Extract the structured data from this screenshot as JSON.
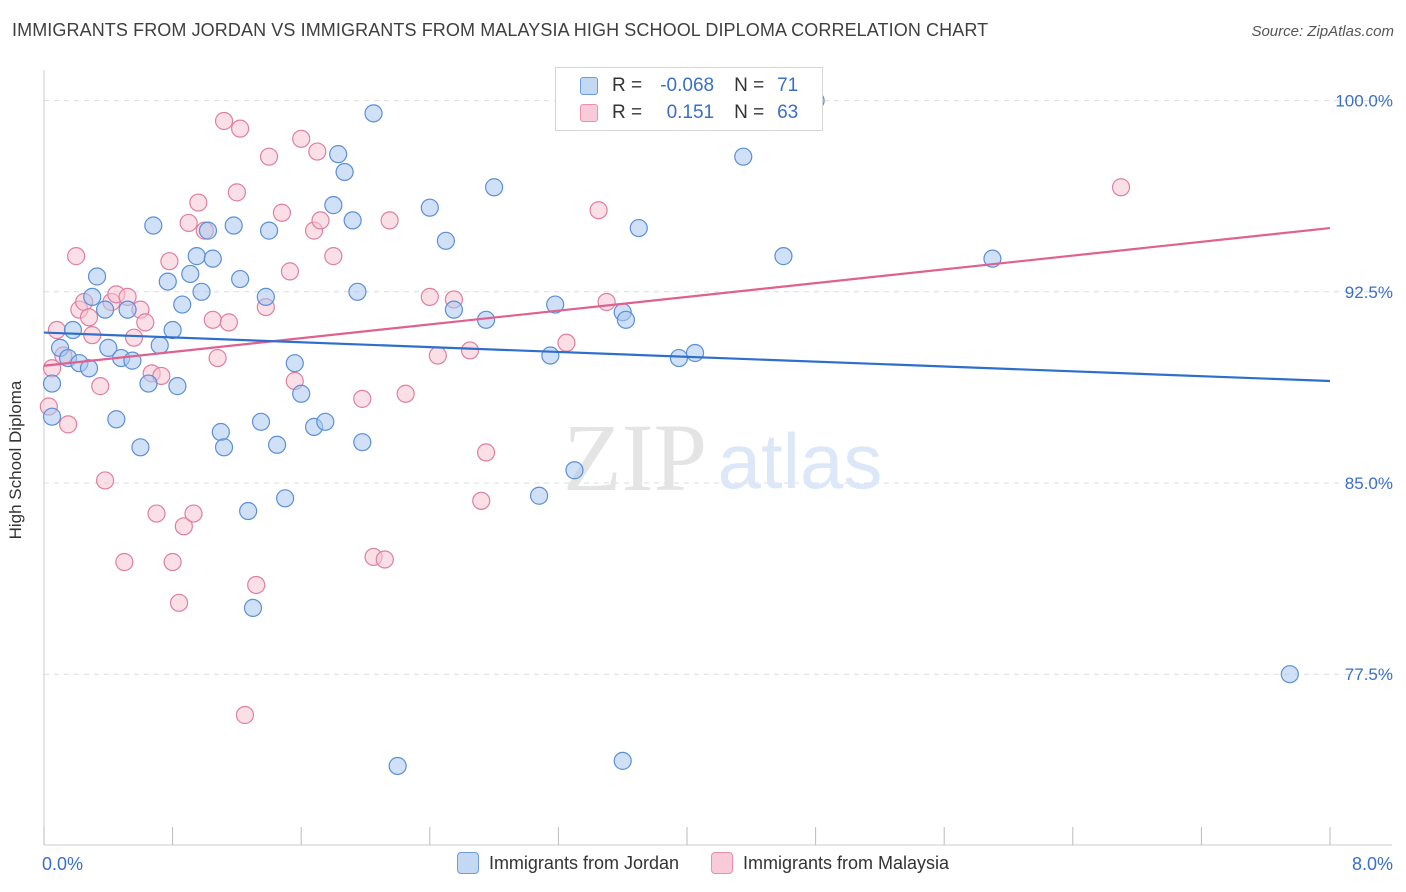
{
  "header": {
    "title": "IMMIGRANTS FROM JORDAN VS IMMIGRANTS FROM MALAYSIA HIGH SCHOOL DIPLOMA CORRELATION CHART",
    "source": "Source: ZipAtlas.com"
  },
  "watermark": {
    "zip": "ZIP",
    "atlas": "atlas"
  },
  "legend": {
    "rows": [
      {
        "r_label": "R =",
        "r_value": "-0.068",
        "n_label": "N =",
        "n_value": "71",
        "color": "#aac8f0"
      },
      {
        "r_label": "R =",
        "r_value": "0.151",
        "n_label": "N =",
        "n_value": "63",
        "color": "#f5b8cb"
      }
    ]
  },
  "bottom_legend": {
    "items": [
      {
        "label": "Immigrants from Jordan",
        "color": "#aac8f0"
      },
      {
        "label": "Immigrants from Malaysia",
        "color": "#f5b8cb"
      }
    ]
  },
  "colors": {
    "jordan_fill": "#aac8f0",
    "jordan_stroke": "#5b8fd6",
    "jordan_line": "#2f6fcc",
    "malaysia_fill": "#f8c4d4",
    "malaysia_stroke": "#e07fa0",
    "malaysia_line": "#e0608f",
    "tick_label": "#3a6fc9"
  },
  "chart_data": {
    "type": "scatter",
    "title": "IMMIGRANTS FROM JORDAN VS IMMIGRANTS FROM MALAYSIA HIGH SCHOOL DIPLOMA CORRELATION CHART",
    "xlabel": "",
    "ylabel": "High School Diploma",
    "xlim": [
      0,
      8
    ],
    "ylim": [
      70.8,
      101.2
    ],
    "x_tick_labels": [
      "0.0%",
      "8.0%"
    ],
    "x_ticks": [
      0,
      0.8,
      1.6,
      2.4,
      3.2,
      4.0,
      4.8,
      5.6,
      6.4,
      7.2,
      8.0
    ],
    "y_ticks": [
      77.5,
      85.0,
      92.5,
      100.0
    ],
    "y_tick_labels": [
      "77.5%",
      "85.0%",
      "92.5%",
      "100.0%"
    ],
    "grid": true,
    "legend_position": "top-center",
    "series": [
      {
        "name": "Immigrants from Jordan",
        "trend": {
          "x": [
            0,
            8
          ],
          "y": [
            90.9,
            89.0
          ]
        },
        "points": [
          [
            0.05,
            87.6
          ],
          [
            0.05,
            88.9
          ],
          [
            0.1,
            90.3
          ],
          [
            0.15,
            89.9
          ],
          [
            0.18,
            91.0
          ],
          [
            0.22,
            89.7
          ],
          [
            0.28,
            89.5
          ],
          [
            0.3,
            92.3
          ],
          [
            0.33,
            93.1
          ],
          [
            0.38,
            91.8
          ],
          [
            0.4,
            90.3
          ],
          [
            0.45,
            87.5
          ],
          [
            0.48,
            89.9
          ],
          [
            0.52,
            91.8
          ],
          [
            0.55,
            89.8
          ],
          [
            0.6,
            86.4
          ],
          [
            0.65,
            88.9
          ],
          [
            0.68,
            95.1
          ],
          [
            0.72,
            90.4
          ],
          [
            0.77,
            92.9
          ],
          [
            0.8,
            91.0
          ],
          [
            0.83,
            88.8
          ],
          [
            0.86,
            92.0
          ],
          [
            0.91,
            93.2
          ],
          [
            0.95,
            93.9
          ],
          [
            0.98,
            92.5
          ],
          [
            1.02,
            94.9
          ],
          [
            1.05,
            93.8
          ],
          [
            1.1,
            87.0
          ],
          [
            1.12,
            86.4
          ],
          [
            1.18,
            95.1
          ],
          [
            1.22,
            93.0
          ],
          [
            1.27,
            83.9
          ],
          [
            1.3,
            80.1
          ],
          [
            1.35,
            87.4
          ],
          [
            1.38,
            92.3
          ],
          [
            1.4,
            94.9
          ],
          [
            1.45,
            86.5
          ],
          [
            1.5,
            84.4
          ],
          [
            1.56,
            89.7
          ],
          [
            1.6,
            88.5
          ],
          [
            1.68,
            87.2
          ],
          [
            1.75,
            87.4
          ],
          [
            1.8,
            95.9
          ],
          [
            1.83,
            97.9
          ],
          [
            1.87,
            97.2
          ],
          [
            1.92,
            95.3
          ],
          [
            1.95,
            92.5
          ],
          [
            1.98,
            86.6
          ],
          [
            2.05,
            99.5
          ],
          [
            2.2,
            73.9
          ],
          [
            2.4,
            95.8
          ],
          [
            2.5,
            94.5
          ],
          [
            2.55,
            91.8
          ],
          [
            2.75,
            91.4
          ],
          [
            2.8,
            96.6
          ],
          [
            3.08,
            84.5
          ],
          [
            3.15,
            90.0
          ],
          [
            3.18,
            92.0
          ],
          [
            3.3,
            85.5
          ],
          [
            3.6,
            91.7
          ],
          [
            3.62,
            91.4
          ],
          [
            3.6,
            74.1
          ],
          [
            3.7,
            95.0
          ],
          [
            3.95,
            89.9
          ],
          [
            4.05,
            90.1
          ],
          [
            4.35,
            97.8
          ],
          [
            4.6,
            93.9
          ],
          [
            5.9,
            93.8
          ],
          [
            7.75,
            77.5
          ],
          [
            4.8,
            100.0
          ]
        ]
      },
      {
        "name": "Immigrants from Malaysia",
        "trend": {
          "x": [
            0,
            8
          ],
          "y": [
            89.6,
            95.0
          ]
        },
        "points": [
          [
            0.03,
            88.0
          ],
          [
            0.05,
            89.5
          ],
          [
            0.08,
            91.0
          ],
          [
            0.12,
            90.0
          ],
          [
            0.15,
            87.3
          ],
          [
            0.2,
            93.9
          ],
          [
            0.22,
            91.8
          ],
          [
            0.25,
            92.1
          ],
          [
            0.28,
            91.5
          ],
          [
            0.3,
            90.8
          ],
          [
            0.35,
            88.8
          ],
          [
            0.38,
            85.1
          ],
          [
            0.42,
            92.1
          ],
          [
            0.45,
            92.4
          ],
          [
            0.5,
            81.9
          ],
          [
            0.52,
            92.3
          ],
          [
            0.56,
            90.7
          ],
          [
            0.6,
            91.8
          ],
          [
            0.63,
            91.3
          ],
          [
            0.67,
            89.3
          ],
          [
            0.7,
            83.8
          ],
          [
            0.73,
            89.2
          ],
          [
            0.78,
            93.7
          ],
          [
            0.8,
            81.9
          ],
          [
            0.84,
            80.3
          ],
          [
            0.87,
            83.3
          ],
          [
            0.9,
            95.2
          ],
          [
            0.93,
            83.8
          ],
          [
            0.96,
            96.0
          ],
          [
            1.0,
            94.9
          ],
          [
            1.05,
            91.4
          ],
          [
            1.08,
            89.9
          ],
          [
            1.12,
            99.2
          ],
          [
            1.15,
            91.3
          ],
          [
            1.2,
            96.4
          ],
          [
            1.22,
            98.9
          ],
          [
            1.25,
            75.9
          ],
          [
            1.32,
            81.0
          ],
          [
            1.38,
            91.9
          ],
          [
            1.4,
            97.8
          ],
          [
            1.48,
            95.6
          ],
          [
            1.53,
            93.3
          ],
          [
            1.56,
            89.0
          ],
          [
            1.6,
            98.5
          ],
          [
            1.68,
            94.9
          ],
          [
            1.7,
            98.0
          ],
          [
            1.72,
            95.3
          ],
          [
            1.8,
            93.9
          ],
          [
            1.98,
            88.3
          ],
          [
            2.05,
            82.1
          ],
          [
            2.12,
            82.0
          ],
          [
            2.15,
            95.3
          ],
          [
            2.25,
            88.5
          ],
          [
            2.4,
            92.3
          ],
          [
            2.45,
            90.0
          ],
          [
            2.55,
            92.2
          ],
          [
            2.65,
            90.2
          ],
          [
            2.72,
            84.3
          ],
          [
            2.75,
            86.2
          ],
          [
            3.25,
            90.5
          ],
          [
            3.45,
            95.7
          ],
          [
            3.5,
            92.1
          ],
          [
            6.7,
            96.6
          ]
        ]
      }
    ]
  }
}
